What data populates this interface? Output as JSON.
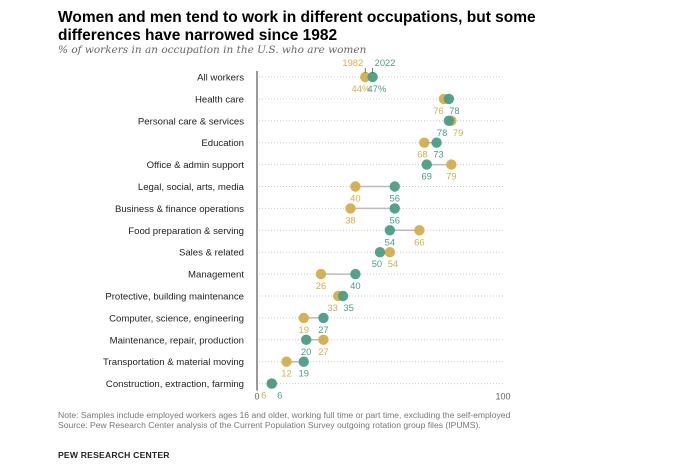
{
  "header": {
    "title": "Women and men tend to work in different occupations, but some differences have narrowed since 1982",
    "subtitle": "% of workers in an occupation in the U.S. who are women"
  },
  "footer": {
    "note": "Note: Samples include employed workers ages 16 and older, working full time or part time, excluding the self-employed",
    "source": "Source: Pew Research Center analysis of the Current Population Survey outgoing rotation group files (IPUMS).",
    "org": "PEW RESEARCH CENTER"
  },
  "colors": {
    "y1982": "#d4ae4b",
    "y2022": "#4a9d86",
    "guide": "#c9c9c9",
    "axis": "#333333",
    "label": "#222222"
  },
  "chart_data": {
    "type": "scatter",
    "style": "dot plot",
    "xlim": [
      0,
      100
    ],
    "x_ticks": [
      0,
      100
    ],
    "legend": "inline above first row",
    "series": [
      {
        "name": "1982",
        "color": "#d4ae4b"
      },
      {
        "name": "2022",
        "color": "#4a9d86"
      }
    ],
    "categories": [
      "All workers",
      "Health care",
      "Personal care & services",
      "Education",
      "Office & admin support",
      "Legal, social, arts, media",
      "Business & finance operations",
      "Food preparation & serving",
      "Sales & related",
      "Management",
      "Protective, building maintenance",
      "Computer, science, engineering",
      "Maintenance, repair, production",
      "Transportation & material moving",
      "Construction, extraction, farming"
    ],
    "values_1982": [
      44,
      76,
      79,
      68,
      79,
      40,
      38,
      66,
      54,
      26,
      33,
      19,
      27,
      12,
      6
    ],
    "values_2022": [
      47,
      78,
      78,
      73,
      69,
      56,
      56,
      54,
      50,
      40,
      35,
      27,
      20,
      19,
      6
    ],
    "label_1982": [
      "44%",
      "76",
      "79",
      "68",
      "79",
      "40",
      "38",
      "66",
      "54",
      "26",
      "33",
      "19",
      "27",
      "12",
      "6"
    ],
    "label_2022": [
      "47%",
      "78",
      "78",
      "73",
      "69",
      "56",
      "56",
      "54",
      "50",
      "40",
      "35",
      "27",
      "20",
      "19",
      "6"
    ]
  }
}
